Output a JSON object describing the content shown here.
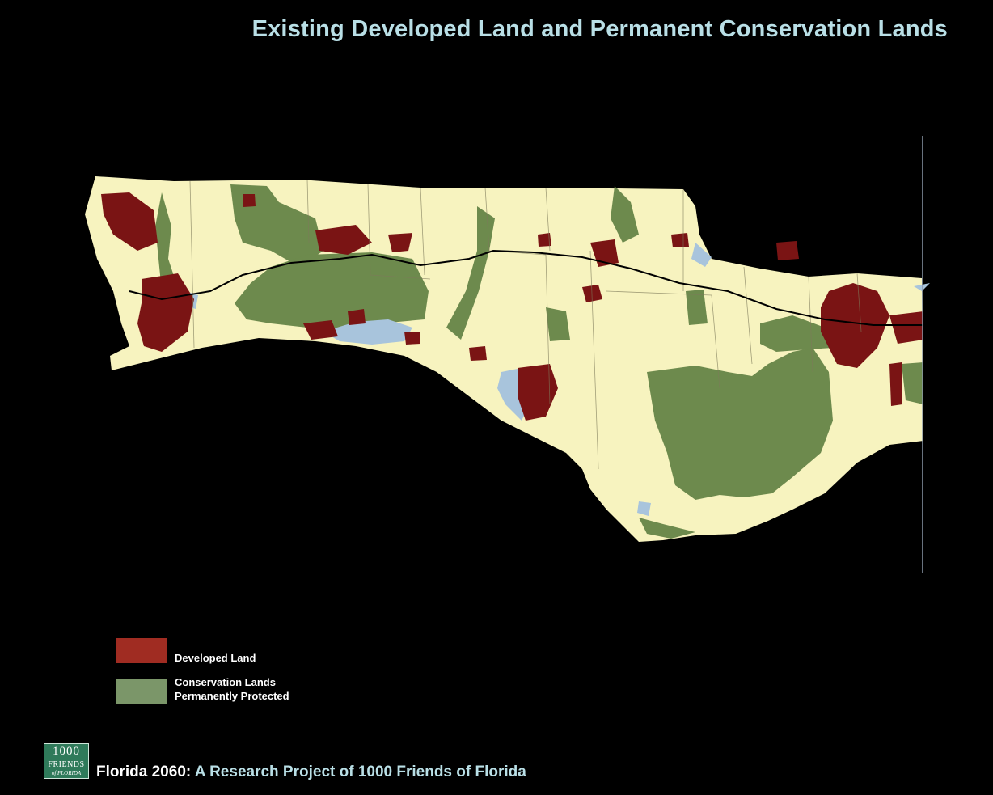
{
  "title": "Existing Developed Land and Permanent Conservation Lands",
  "legend": [
    {
      "label_lines": [
        "Developed Land"
      ],
      "color": "#a02c22"
    },
    {
      "label_lines": [
        "Conservation Lands",
        "Permanently Protected"
      ],
      "color": "#7b9669"
    }
  ],
  "map_colors": {
    "land": "#f7f3bf",
    "developed": "#7a1414",
    "conservation": "#6d8a4d",
    "water": "#a8c4dc",
    "roads": "#000000",
    "frame_line": "#8a97a8"
  },
  "logo": {
    "line1": "1000",
    "line2": "FRIENDS",
    "line3": "of FLORIDA"
  },
  "footer": {
    "prefix": "Florida 2060:",
    "text": " A Research Project of 1000 Friends of Florida"
  }
}
